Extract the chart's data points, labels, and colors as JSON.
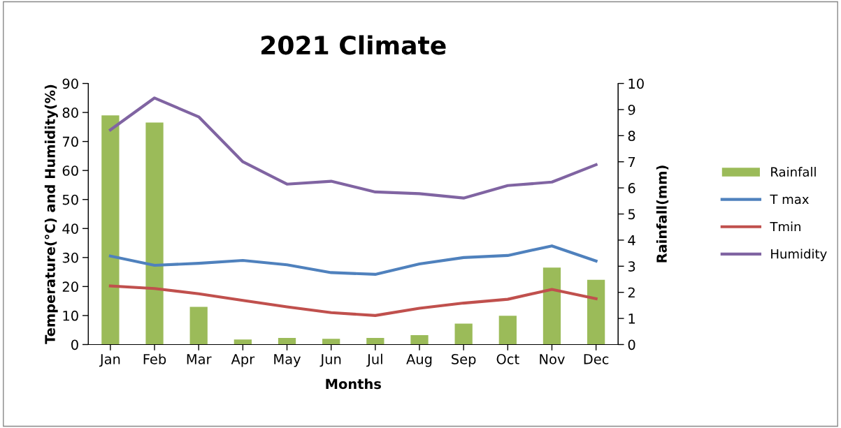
{
  "chart_data": {
    "type": "line",
    "title": "2021 Climate",
    "xlabel": "Months",
    "ylabel": "Temperature(°C) and Humidity(%)",
    "y2label": "Rainfall(mm)",
    "categories": [
      "Jan",
      "Feb",
      "Mar",
      "Apr",
      "May",
      "Jun",
      "Jul",
      "Aug",
      "Sep",
      "Oct",
      "Nov",
      "Dec"
    ],
    "series": [
      {
        "name": "Rainfall",
        "type": "bar",
        "axis": "y2",
        "color": "#9bbb59",
        "values": [
          8.78,
          8.5,
          1.44,
          0.19,
          0.25,
          0.22,
          0.25,
          0.36,
          0.8,
          1.1,
          2.95,
          2.48
        ]
      },
      {
        "name": "T max",
        "color": "#4f81bd",
        "values": [
          30.5,
          27.3,
          28,
          29,
          27.5,
          24.8,
          24.2,
          27.8,
          30,
          30.7,
          34,
          28.8
        ]
      },
      {
        "name": "Tmin",
        "color": "#c0504d",
        "values": [
          20.2,
          19.3,
          17.5,
          15.2,
          13,
          11,
          10,
          12.5,
          14.3,
          15.6,
          19,
          15.8
        ]
      },
      {
        "name": "Humidity",
        "color": "#8064a2",
        "values": [
          74,
          85,
          78.5,
          63,
          55.3,
          56.3,
          52.6,
          52,
          50.5,
          54.8,
          56,
          62
        ]
      }
    ],
    "ylim": [
      0,
      90
    ],
    "yticks": [
      0,
      10,
      20,
      30,
      40,
      50,
      60,
      70,
      80,
      90
    ],
    "y2lim": [
      0,
      10
    ],
    "y2ticks": [
      0,
      1,
      2,
      3,
      4,
      5,
      6,
      7,
      8,
      9,
      10
    ],
    "grid": false,
    "legend": "right",
    "marker": "none",
    "line_style": "solid"
  }
}
